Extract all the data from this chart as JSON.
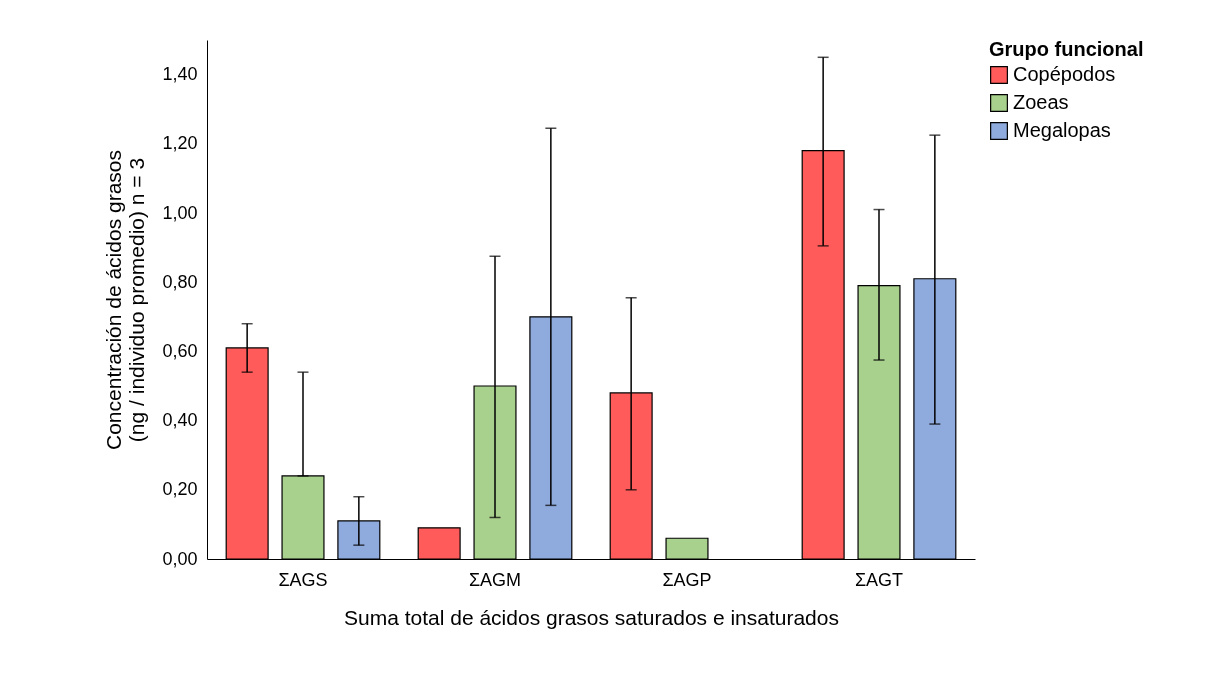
{
  "chart_data": {
    "type": "bar",
    "xlabel": "Suma total de ácidos grasos saturados e insaturados",
    "ylabel": "Concentración de ácidos grasos (ng / individuo promedio) n = 3",
    "legend_title": "Grupo funcional",
    "legend": "right",
    "grid": false,
    "categories": [
      "ΣAGS",
      "ΣAGM",
      "ΣAGP",
      "ΣAGT"
    ],
    "ylim": [
      0,
      1.5
    ],
    "yticks": [
      {
        "value": 0,
        "label": "0,00"
      },
      {
        "value": 0.2,
        "label": "0,20"
      },
      {
        "value": 0.4,
        "label": "0,40"
      },
      {
        "value": 0.6,
        "label": "0,60"
      },
      {
        "value": 0.8,
        "label": "0,80"
      },
      {
        "value": 1.0,
        "label": "1,00"
      },
      {
        "value": 1.2,
        "label": "1,20"
      },
      {
        "value": 1.4,
        "label": "1,40"
      }
    ],
    "series": [
      {
        "name": "Copépodos",
        "color": "#ff5b5b",
        "values": [
          0.61,
          0.09,
          0.48,
          1.18
        ],
        "errors": [
          [
            0.54,
            0.68
          ],
          null,
          [
            0.2,
            0.755
          ],
          [
            0.905,
            1.45
          ]
        ]
      },
      {
        "name": "Zoeas",
        "color": "#a9d18e",
        "values": [
          0.24,
          0.5,
          0.06,
          0.79
        ],
        "errors": [
          [
            0.24,
            0.54
          ],
          [
            0.12,
            0.875
          ],
          null,
          [
            0.575,
            1.01
          ]
        ]
      },
      {
        "name": "Megalopas",
        "color": "#8faadc",
        "values": [
          0.11,
          0.7,
          null,
          0.81
        ],
        "errors": [
          [
            0.04,
            0.18
          ],
          [
            0.155,
            1.245
          ],
          null,
          [
            0.39,
            1.225
          ]
        ]
      }
    ]
  }
}
